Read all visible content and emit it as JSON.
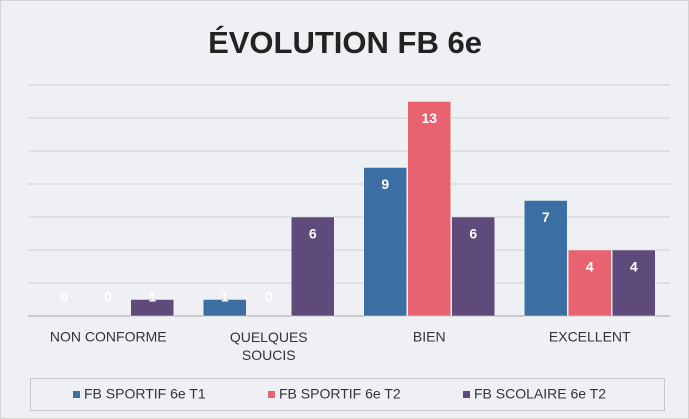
{
  "chart_data": {
    "type": "bar",
    "title": "ÉVOLUTION FB 6e",
    "categories": [
      "NON CONFORME",
      "QUELQUES SOUCIS",
      "BIEN",
      "EXCELLENT"
    ],
    "series": [
      {
        "name": "FB SPORTIF 6e T1",
        "color": "#3b6fa3",
        "values": [
          0,
          1,
          9,
          7
        ]
      },
      {
        "name": "FB SPORTIF 6e T2",
        "color": "#e8636f",
        "values": [
          0,
          0,
          13,
          4
        ]
      },
      {
        "name": "FB SCOLAIRE 6e T2",
        "color": "#5f4b7b",
        "values": [
          1,
          6,
          6,
          4
        ]
      }
    ],
    "ylim": [
      0,
      14
    ],
    "yticks": [
      0,
      2,
      4,
      6,
      8,
      10,
      12,
      14
    ],
    "grid": true,
    "legend": "bottom"
  }
}
